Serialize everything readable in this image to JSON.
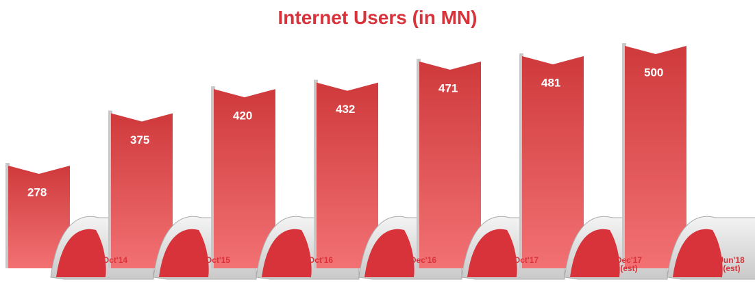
{
  "chart_data": {
    "type": "bar",
    "title": "Internet Users (in MN)",
    "categories": [
      "Oct'14",
      "Oct'15",
      "Oct'16",
      "Dec'16",
      "Oct'17",
      "Dec'17 (est)",
      "Jun'18 (est)"
    ],
    "values": [
      278,
      375,
      420,
      432,
      471,
      481,
      500
    ],
    "color": "#d8323a"
  }
}
